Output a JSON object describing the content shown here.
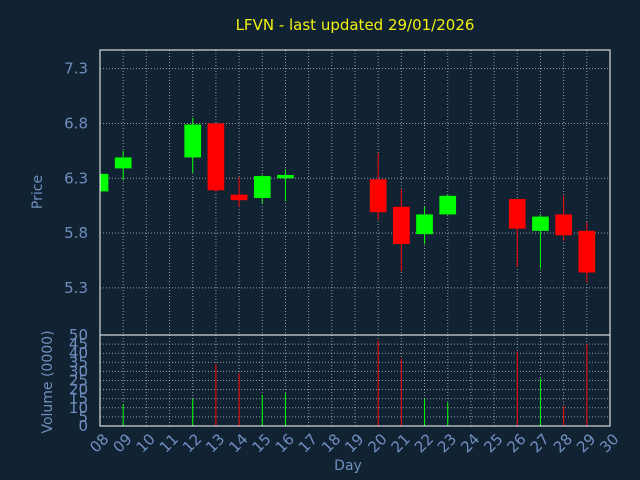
{
  "chart_data": [
    {
      "type": "candlestick",
      "title": "LFVN - last updated 29/01/2026",
      "ylabel": "Price",
      "xlabel": "Day",
      "ylim": [
        4.87,
        7.47
      ],
      "yticks": [
        "7.3",
        "6.8",
        "6.3",
        "5.8",
        "5.3"
      ],
      "grid": true,
      "colors": {
        "up": "#00ff00",
        "down": "#ff0000",
        "title": "#f2f210",
        "axis_text": "#6f8fbf",
        "background": "#112233",
        "grid": "#ffffff"
      },
      "candles": [
        {
          "day": 8,
          "open": 6.18,
          "high": 6.38,
          "low": 6.15,
          "close": 6.34
        },
        {
          "day": 9,
          "open": 6.39,
          "high": 6.55,
          "low": 6.28,
          "close": 6.49
        },
        {
          "day": 12,
          "open": 6.49,
          "high": 6.85,
          "low": 6.35,
          "close": 6.79
        },
        {
          "day": 13,
          "open": 6.8,
          "high": 6.8,
          "low": 6.17,
          "close": 6.19
        },
        {
          "day": 14,
          "open": 6.15,
          "high": 6.31,
          "low": 6.04,
          "close": 6.1
        },
        {
          "day": 15,
          "open": 6.12,
          "high": 6.33,
          "low": 6.07,
          "close": 6.32
        },
        {
          "day": 16,
          "open": 6.3,
          "high": 6.38,
          "low": 6.09,
          "close": 6.33
        },
        {
          "day": 20,
          "open": 6.29,
          "high": 6.53,
          "low": 5.92,
          "close": 5.99
        },
        {
          "day": 21,
          "open": 6.04,
          "high": 6.2,
          "low": 5.45,
          "close": 5.7
        },
        {
          "day": 22,
          "open": 5.79,
          "high": 6.04,
          "low": 5.7,
          "close": 5.97
        },
        {
          "day": 23,
          "open": 5.97,
          "high": 6.15,
          "low": 5.97,
          "close": 6.14
        },
        {
          "day": 26,
          "open": 6.11,
          "high": 6.11,
          "low": 5.49,
          "close": 5.84
        },
        {
          "day": 27,
          "open": 5.82,
          "high": 5.97,
          "low": 5.48,
          "close": 5.95
        },
        {
          "day": 28,
          "open": 5.97,
          "high": 6.14,
          "low": 5.73,
          "close": 5.78
        },
        {
          "day": 29,
          "open": 5.82,
          "high": 5.9,
          "low": 5.35,
          "close": 5.44
        }
      ]
    },
    {
      "type": "bar",
      "ylabel": "Volume (0000)",
      "xlabel": "Day",
      "ylim": [
        0,
        50
      ],
      "yticks": [
        "50",
        "45",
        "40",
        "35",
        "30",
        "25",
        "20",
        "15",
        "10",
        "5",
        "0"
      ],
      "categories": [
        "08",
        "09",
        "10",
        "11",
        "12",
        "13",
        "14",
        "15",
        "16",
        "17",
        "18",
        "19",
        "20",
        "21",
        "22",
        "23",
        "24",
        "25",
        "26",
        "27",
        "28",
        "29",
        "30"
      ],
      "bars": [
        {
          "day": 8,
          "value": 3,
          "dir": "up"
        },
        {
          "day": 9,
          "value": 12,
          "dir": "up"
        },
        {
          "day": 12,
          "value": 15,
          "dir": "up"
        },
        {
          "day": 13,
          "value": 34,
          "dir": "down"
        },
        {
          "day": 14,
          "value": 29,
          "dir": "down"
        },
        {
          "day": 15,
          "value": 17,
          "dir": "up"
        },
        {
          "day": 16,
          "value": 18,
          "dir": "up"
        },
        {
          "day": 20,
          "value": 47,
          "dir": "down"
        },
        {
          "day": 21,
          "value": 37,
          "dir": "down"
        },
        {
          "day": 22,
          "value": 15,
          "dir": "up"
        },
        {
          "day": 23,
          "value": 13,
          "dir": "up"
        },
        {
          "day": 26,
          "value": 41,
          "dir": "down"
        },
        {
          "day": 27,
          "value": 26,
          "dir": "up"
        },
        {
          "day": 28,
          "value": 11,
          "dir": "down"
        },
        {
          "day": 29,
          "value": 45,
          "dir": "down"
        }
      ]
    }
  ]
}
